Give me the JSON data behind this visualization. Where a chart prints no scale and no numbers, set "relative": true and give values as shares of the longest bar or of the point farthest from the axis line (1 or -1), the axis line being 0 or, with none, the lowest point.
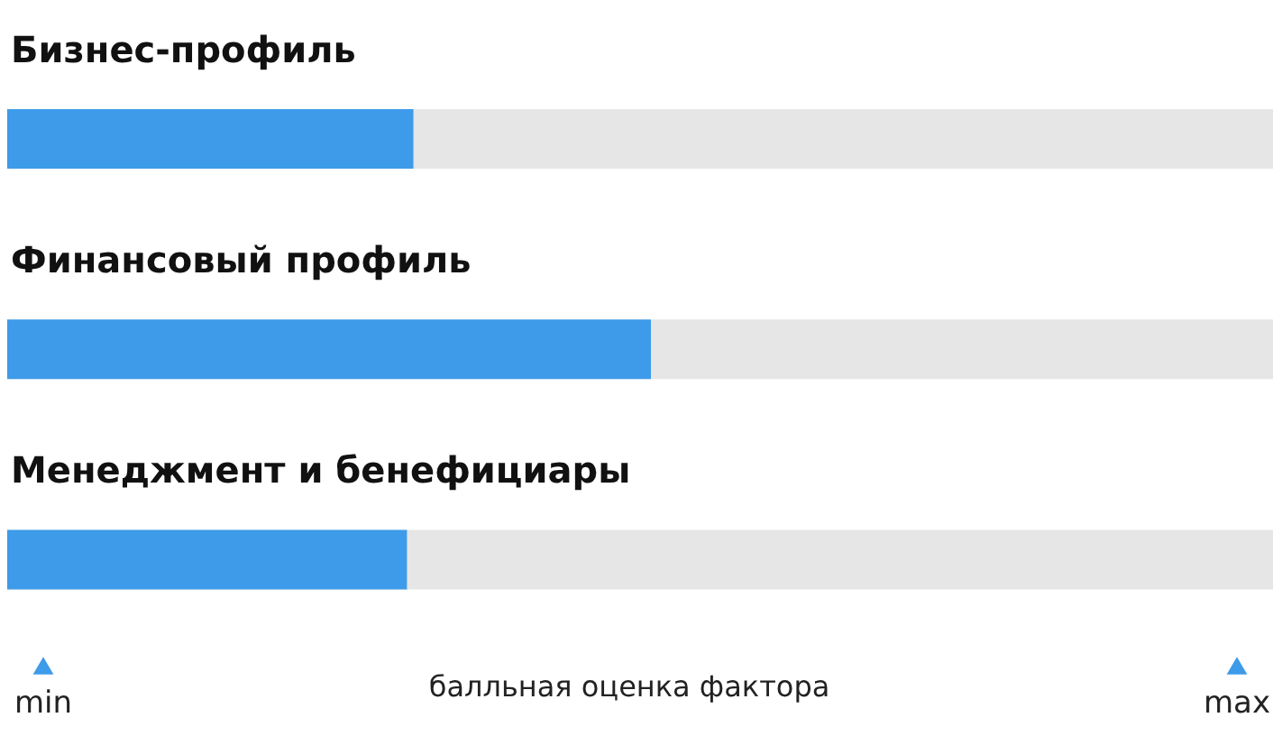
{
  "chart_data": {
    "type": "bar",
    "orientation": "horizontal",
    "relative": true,
    "categories": [
      "Бизнес-профиль",
      "Финансовый профиль",
      "Менеджмент и бенефициары"
    ],
    "values": [
      0.631,
      1,
      0.621
    ],
    "color": "#3d9be9",
    "xlabel": "балльная оценка фактора",
    "annotations": [
      "min",
      "max"
    ]
  }
}
